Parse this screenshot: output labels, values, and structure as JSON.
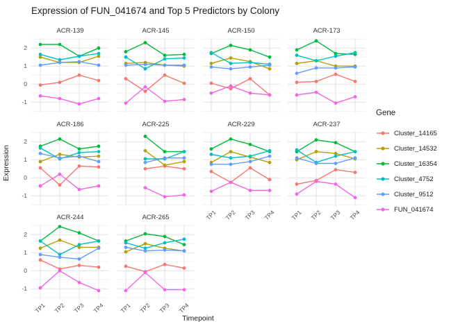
{
  "title": "Expression of FUN_041674 and Top 5 Predictors by Colony",
  "axes": {
    "x_title": "Timepoint",
    "y_title": "Expression",
    "x_ticks": [
      "TP1",
      "TP2",
      "TP3",
      "TP4"
    ],
    "y_ticks": [
      "2",
      "1",
      "0",
      "-1"
    ]
  },
  "legend": {
    "title": "Gene",
    "position": "right",
    "entries": [
      {
        "label": "Cluster_14165",
        "color": "#F8766D"
      },
      {
        "label": "Cluster_14532",
        "color": "#B79F00"
      },
      {
        "label": "Cluster_16354",
        "color": "#00BA38"
      },
      {
        "label": "Cluster_4752",
        "color": "#00BFC4"
      },
      {
        "label": "Cluster_9512",
        "color": "#619CFF"
      },
      {
        "label": "FUN_041674",
        "color": "#F564E3"
      }
    ]
  },
  "chart_data": {
    "type": "line",
    "title": "Expression of FUN_041674 and Top 5 Predictors by Colony",
    "xlabel": "Timepoint",
    "ylabel": "Expression",
    "x": [
      "TP1",
      "TP2",
      "TP3",
      "TP4"
    ],
    "ylim": [
      -1.55,
      2.55
    ],
    "y_major_ticks": [
      2,
      1,
      0,
      -1
    ],
    "y_minor_gridlines": [
      2.5,
      1.5,
      0.5,
      -0.5,
      -1.5
    ],
    "grid": true,
    "legend_position": "right",
    "facets": [
      {
        "name": "ACR-139",
        "row": 0,
        "col": 0,
        "series": {
          "Cluster_14165": [
            -0.05,
            0.1,
            0.5,
            0.2
          ],
          "Cluster_14532": [
            1.5,
            1.2,
            1.2,
            1.55
          ],
          "Cluster_16354": [
            2.2,
            2.2,
            1.55,
            2.0
          ],
          "Cluster_4752": [
            1.65,
            1.35,
            1.55,
            1.7
          ],
          "Cluster_9512": [
            1.05,
            1.2,
            1.25,
            1.05
          ],
          "FUN_041674": [
            -0.65,
            -0.8,
            -1.1,
            -0.8
          ]
        }
      },
      {
        "name": "ACR-145",
        "row": 0,
        "col": 1,
        "series": {
          "Cluster_14165": [
            0.3,
            -0.4,
            0.5,
            0.05
          ],
          "Cluster_14532": [
            1.15,
            1.2,
            1.05,
            1.0
          ],
          "Cluster_16354": [
            1.8,
            2.3,
            1.6,
            1.65
          ],
          "Cluster_4752": [
            1.5,
            0.85,
            1.4,
            1.45
          ],
          "Cluster_9512": [
            1.05,
            1.1,
            1.05,
            1.05
          ],
          "FUN_041674": [
            -1.05,
            -0.15,
            -0.95,
            -0.85
          ]
        }
      },
      {
        "name": "ACR-150",
        "row": 0,
        "col": 2,
        "series": {
          "Cluster_14165": [
            0.05,
            -0.25,
            0.3,
            -0.6
          ],
          "Cluster_14532": [
            1.15,
            1.45,
            1.25,
            0.85
          ],
          "Cluster_16354": [
            1.7,
            2.15,
            1.9,
            1.5
          ],
          "Cluster_4752": [
            1.75,
            1.15,
            1.2,
            1.1
          ],
          "Cluster_9512": [
            0.95,
            0.85,
            0.95,
            1.05
          ],
          "FUN_041674": [
            -0.5,
            -0.1,
            -0.5,
            -0.6
          ]
        }
      },
      {
        "name": "ACR-173",
        "row": 0,
        "col": 3,
        "series": {
          "Cluster_14165": [
            0.1,
            0.15,
            0.55,
            0.15
          ],
          "Cluster_14532": [
            1.15,
            1.3,
            1.0,
            1.0
          ],
          "Cluster_16354": [
            1.9,
            2.4,
            1.7,
            1.65
          ],
          "Cluster_4752": [
            1.6,
            1.3,
            1.55,
            1.75
          ],
          "Cluster_9512": [
            0.6,
            0.9,
            0.9,
            0.95
          ],
          "FUN_041674": [
            -0.6,
            -0.45,
            -1.05,
            -0.7
          ]
        }
      },
      {
        "name": "ACR-186",
        "row": 1,
        "col": 0,
        "series": {
          "Cluster_14165": [
            0.55,
            -0.4,
            0.65,
            0.6
          ],
          "Cluster_14532": [
            0.9,
            1.3,
            1.15,
            1.2
          ],
          "Cluster_16354": [
            1.75,
            2.15,
            1.6,
            1.75
          ],
          "Cluster_4752": [
            1.65,
            1.05,
            1.4,
            1.45
          ],
          "Cluster_9512": [
            1.35,
            1.1,
            1.2,
            0.9
          ],
          "FUN_041674": [
            -0.45,
            0.2,
            -0.65,
            -0.45
          ]
        }
      },
      {
        "name": "ACR-225",
        "row": 1,
        "col": 1,
        "series": {
          "Cluster_14165": [
            null,
            0.5,
            0.65,
            0.5
          ],
          "Cluster_14532": [
            null,
            1.5,
            0.7,
            0.9
          ],
          "Cluster_16354": [
            null,
            2.3,
            1.45,
            1.45
          ],
          "Cluster_4752": [
            null,
            1.05,
            1.05,
            1.45
          ],
          "Cluster_9512": [
            null,
            0.85,
            1.1,
            1.1
          ],
          "FUN_041674": [
            null,
            -0.55,
            -1.05,
            -0.95
          ]
        }
      },
      {
        "name": "ACR-229",
        "row": 1,
        "col": 2,
        "series": {
          "Cluster_14165": [
            0.35,
            -0.25,
            0.55,
            -0.1
          ],
          "Cluster_14532": [
            0.85,
            1.45,
            1.15,
            0.85
          ],
          "Cluster_16354": [
            1.6,
            2.15,
            1.85,
            1.45
          ],
          "Cluster_4752": [
            1.3,
            1.1,
            1.2,
            1.5
          ],
          "Cluster_9512": [
            0.75,
            0.75,
            0.9,
            1.2
          ],
          "FUN_041674": [
            -0.75,
            -0.25,
            -0.7,
            -0.7
          ]
        }
      },
      {
        "name": "ACR-237",
        "row": 1,
        "col": 3,
        "series": {
          "Cluster_14165": [
            -0.35,
            -0.15,
            0.45,
            0.3
          ],
          "Cluster_14532": [
            1.0,
            1.45,
            1.35,
            1.05
          ],
          "Cluster_16354": [
            1.45,
            2.1,
            1.95,
            1.45
          ],
          "Cluster_4752": [
            1.55,
            0.85,
            1.2,
            1.45
          ],
          "Cluster_9512": [
            1.1,
            0.8,
            0.8,
            1.1
          ],
          "FUN_041674": [
            -0.9,
            -0.2,
            -0.35,
            -1.1
          ]
        }
      },
      {
        "name": "ACR-244",
        "row": 2,
        "col": 0,
        "series": {
          "Cluster_14165": [
            0.6,
            0.1,
            0.3,
            0.2
          ],
          "Cluster_14532": [
            1.25,
            1.7,
            1.3,
            1.3
          ],
          "Cluster_16354": [
            1.65,
            2.45,
            2.1,
            1.65
          ],
          "Cluster_4752": [
            1.65,
            0.9,
            1.45,
            1.65
          ],
          "Cluster_9512": [
            0.9,
            0.75,
            0.65,
            1.25
          ],
          "FUN_041674": [
            -0.95,
            0.0,
            -0.65,
            -1.1
          ]
        }
      },
      {
        "name": "ACR-265",
        "row": 2,
        "col": 1,
        "series": {
          "Cluster_14165": [
            0.25,
            -0.05,
            0.35,
            0.15
          ],
          "Cluster_14532": [
            1.05,
            1.5,
            1.25,
            1.1
          ],
          "Cluster_16354": [
            1.65,
            2.05,
            1.9,
            1.45
          ],
          "Cluster_4752": [
            1.55,
            1.25,
            1.55,
            1.75
          ],
          "Cluster_9512": [
            1.3,
            1.1,
            1.15,
            1.1
          ],
          "FUN_041674": [
            -1.1,
            -0.1,
            -1.05,
            -1.05
          ]
        }
      }
    ]
  }
}
